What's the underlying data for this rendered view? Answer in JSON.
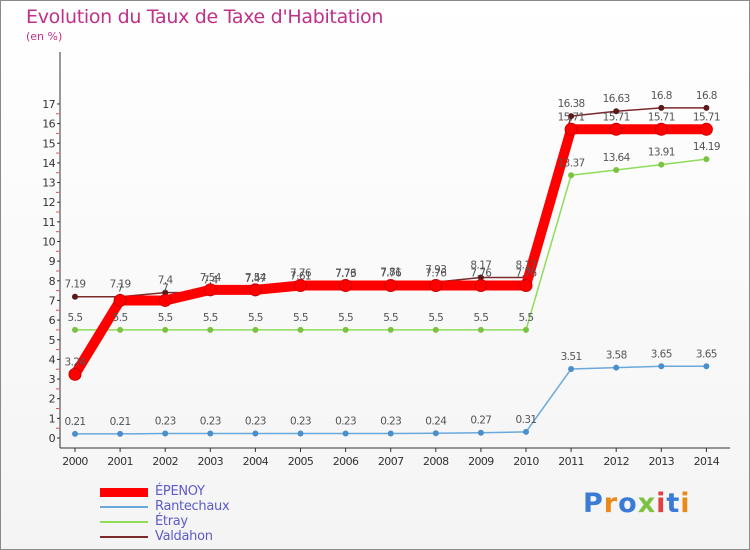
{
  "header": {
    "title": "Evolution du Taux de Taxe d'Habitation",
    "subtitle": "(en %)"
  },
  "logo": {
    "text": "Proxiti",
    "colors": [
      "#3a7bd5",
      "#e88a1a",
      "#3a7bd5",
      "#7cc242",
      "#e04040",
      "#3a7bd5",
      "#e88a1a"
    ]
  },
  "chart_data": {
    "type": "line",
    "x": [
      "2000",
      "2001",
      "2002",
      "2003",
      "2004",
      "2005",
      "2006",
      "2007",
      "2008",
      "2009",
      "2010",
      "2011",
      "2012",
      "2013",
      "2014"
    ],
    "ylim": [
      0,
      17
    ],
    "yticks": [
      "0",
      "1",
      "2",
      "3",
      "4",
      "5",
      "6",
      "7",
      "8",
      "9",
      "10",
      "11",
      "12",
      "13",
      "14",
      "15",
      "16",
      "17"
    ],
    "grid": false,
    "legend_position": "bottom-left",
    "series": [
      {
        "name": "ÉPENOY",
        "color": "#ff0000",
        "values": [
          3.24,
          7,
          7,
          7.54,
          7.54,
          7.76,
          7.76,
          7.76,
          7.76,
          7.76,
          7.76,
          15.71,
          15.71,
          15.71,
          15.71
        ],
        "labels": [
          "3.24",
          "7",
          "7",
          "7.54",
          "7.54",
          "7.76",
          "7.76",
          "7.76",
          "7.76",
          "7.76",
          "7.76",
          "15.71",
          "15.71",
          "15.71",
          "15.71"
        ]
      },
      {
        "name": "Rantechaux",
        "color": "#6aa9dc",
        "values": [
          0.21,
          0.21,
          0.23,
          0.23,
          0.23,
          0.23,
          0.23,
          0.23,
          0.24,
          0.27,
          0.31,
          3.51,
          3.58,
          3.65,
          3.65
        ],
        "labels": [
          "0.21",
          "0.21",
          "0.23",
          "0.23",
          "0.23",
          "0.23",
          "0.23",
          "0.23",
          "0.24",
          "0.27",
          "0.31",
          "3.51",
          "3.58",
          "3.65",
          "3.65"
        ]
      },
      {
        "name": "Étray",
        "color": "#8fdc5a",
        "values": [
          5.5,
          5.5,
          5.5,
          5.5,
          5.5,
          5.5,
          5.5,
          5.5,
          5.5,
          5.5,
          5.5,
          13.37,
          13.64,
          13.91,
          14.19
        ],
        "labels": [
          "5.5",
          "5.5",
          "5.5",
          "5.5",
          "5.5",
          "5.5",
          "5.5",
          "5.5",
          "5.5",
          "5.5",
          "5.5",
          "13.37",
          "13.64",
          "13.91",
          "14.19"
        ]
      },
      {
        "name": "Valdahon",
        "color": "#7a2a2a",
        "values": [
          7.19,
          7.19,
          7.4,
          7.4,
          7.47,
          7.61,
          7.73,
          7.81,
          7.93,
          8.17,
          8.17,
          16.38,
          16.63,
          16.8,
          16.8
        ],
        "labels": [
          "7.19",
          "7.19",
          "7.4",
          "7.4",
          "7.47",
          "7.61",
          "7.73",
          "7.81",
          "7.93",
          "8.17",
          "8.17",
          "16.38",
          "16.63",
          "16.8",
          "16.8"
        ]
      }
    ]
  }
}
